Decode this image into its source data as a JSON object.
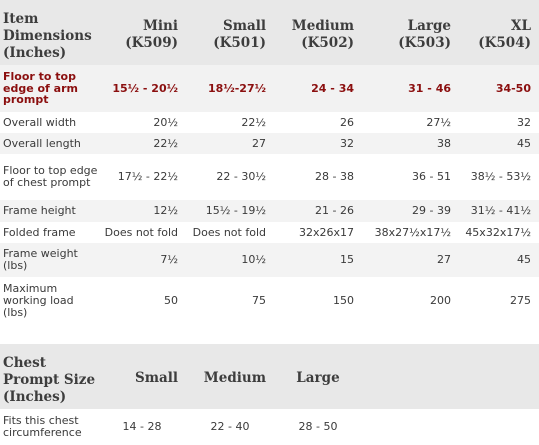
{
  "table1": {
    "header": {
      "label": "Item Dimensions (Inches)",
      "columns": [
        {
          "name": "Mini",
          "code": "(K509)"
        },
        {
          "name": "Small",
          "code": "(K501)"
        },
        {
          "name": "Medium",
          "code": "(K502)"
        },
        {
          "name": "Large",
          "code": "(K503)"
        },
        {
          "name": "XL",
          "code": "(K504)"
        }
      ]
    },
    "rows": [
      {
        "label": "Floor to top edge of arm prompt",
        "values": [
          "15½ - 20½",
          "18½-27½",
          "24 - 34",
          "31 - 46",
          "34-50"
        ]
      },
      {
        "label": "Overall width",
        "values": [
          "20½",
          "22½",
          "26",
          "27½",
          "32"
        ]
      },
      {
        "label": "Overall length",
        "values": [
          "22½",
          "27",
          "32",
          "38",
          "45"
        ]
      },
      {
        "label": "Floor to top edge of chest prompt",
        "values": [
          "17½ - 22½",
          "22 - 30½",
          "28 - 38",
          "36 - 51",
          "38½ - 53½"
        ]
      },
      {
        "label": "Frame height",
        "values": [
          "12½",
          "15½ - 19½",
          "21 - 26",
          "29 - 39",
          "31½ - 41½"
        ]
      },
      {
        "label": "Folded frame",
        "values": [
          "Does not fold",
          "Does not fold",
          "32x26x17",
          "38x27½x17½",
          "45x32x17½"
        ]
      },
      {
        "label": "Frame weight (lbs)",
        "values": [
          "7½",
          "10½",
          "15",
          "27",
          "45"
        ]
      },
      {
        "label": "Maximum working load (lbs)",
        "values": [
          "50",
          "75",
          "150",
          "200",
          "275"
        ]
      }
    ]
  },
  "table2": {
    "header": {
      "label": "Chest Prompt Size (Inches)",
      "columns": [
        "Small",
        "Medium",
        "Large"
      ]
    },
    "rows": [
      {
        "label": "Fits this chest circumference",
        "values": [
          "14 - 28",
          "22 - 40",
          "28 - 50"
        ]
      }
    ]
  }
}
